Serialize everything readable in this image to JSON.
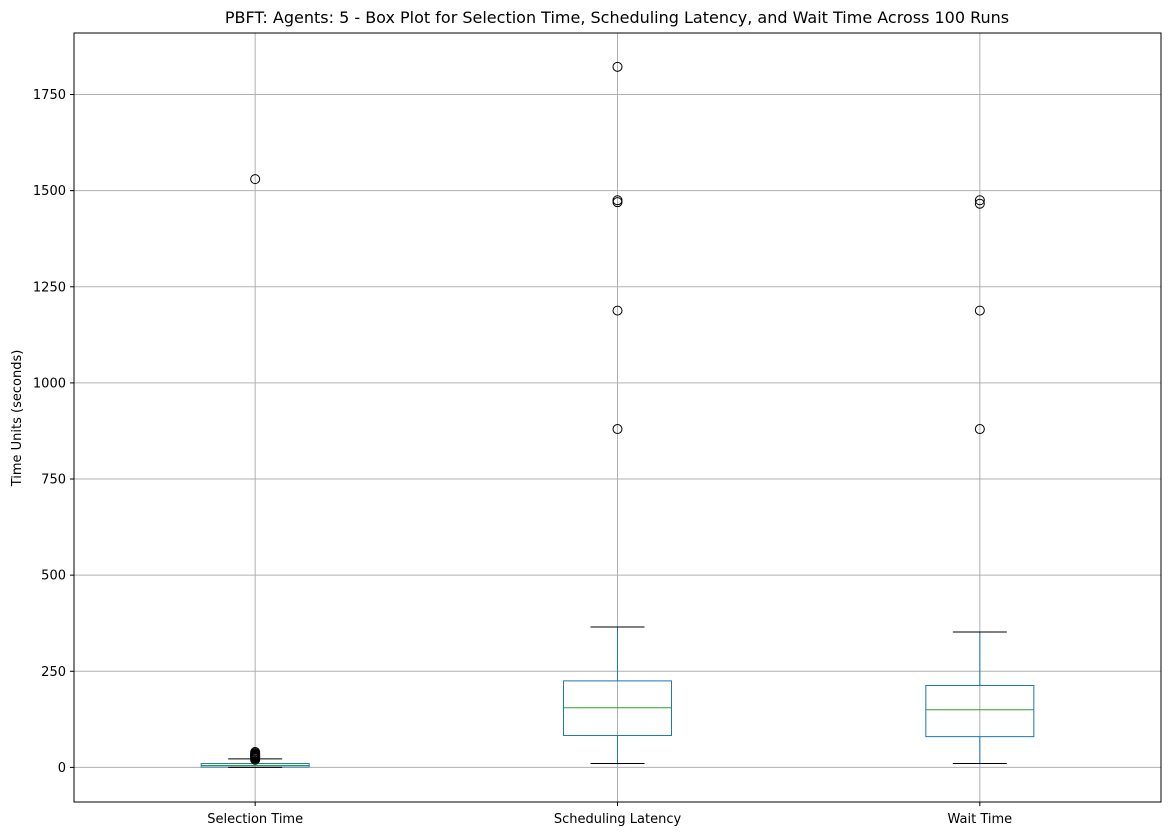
{
  "chart_data": {
    "type": "box",
    "title": "PBFT: Agents: 5 - Box Plot for Selection Time, Scheduling Latency, and Wait Time Across 100 Runs",
    "xlabel": "",
    "ylabel": "Time Units (seconds)",
    "ylim": [
      -90,
      1910
    ],
    "yticks": [
      0,
      250,
      500,
      750,
      1000,
      1250,
      1500,
      1750
    ],
    "grid": true,
    "categories": [
      "Selection Time",
      "Scheduling Latency",
      "Wait Time"
    ],
    "boxes": [
      {
        "category": "Selection Time",
        "whisker_low": 0,
        "q1": 1,
        "median": 5,
        "q3": 10,
        "whisker_high": 22,
        "outliers": [
          1530,
          20,
          23,
          25,
          27,
          29,
          31,
          33,
          35,
          37,
          40
        ]
      },
      {
        "category": "Scheduling Latency",
        "whisker_low": 10,
        "q1": 83,
        "median": 155,
        "q3": 225,
        "whisker_high": 365,
        "outliers": [
          1822,
          1475,
          1470,
          1188,
          880
        ]
      },
      {
        "category": "Wait Time",
        "whisker_low": 10,
        "q1": 80,
        "median": 150,
        "q3": 213,
        "whisker_high": 352,
        "outliers": [
          1475,
          1466,
          1188,
          880
        ]
      }
    ],
    "colors": {
      "box": "#1f77b4",
      "median": "#2ca02c",
      "whisker_cap": "#000000",
      "outlier": "#000000",
      "grid": "#b0b0b0"
    }
  }
}
